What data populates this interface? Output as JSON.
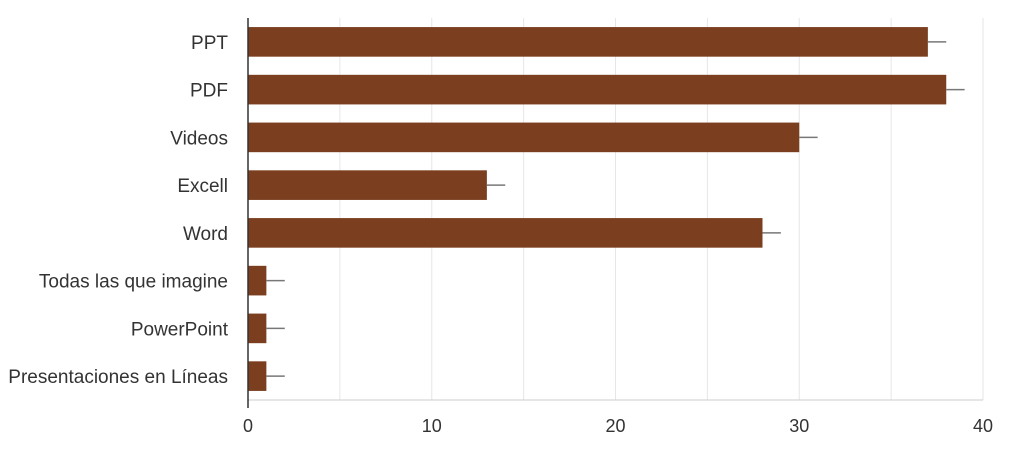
{
  "chart_data": {
    "type": "bar",
    "orientation": "horizontal",
    "categories": [
      "PPT",
      "PDF",
      "Videos",
      "Excell",
      "Word",
      "Todas las que imagine",
      "PowerPoint",
      "Presentaciones en Líneas"
    ],
    "values": [
      37,
      38,
      30,
      13,
      28,
      1,
      1,
      1
    ],
    "error_bars": [
      1,
      1,
      1,
      1,
      1,
      1,
      1,
      1
    ],
    "xlim": [
      0,
      40
    ],
    "xticks": [
      "0",
      "10",
      "20",
      "30",
      "40"
    ],
    "title": "",
    "xlabel": "",
    "ylabel": "",
    "grid": true,
    "legend": "none",
    "colors": {
      "bar": "#7b3f1f",
      "error_bar": "#777777",
      "grid": "#e6e6e6",
      "axis": "#333333",
      "text": "#333333"
    }
  }
}
